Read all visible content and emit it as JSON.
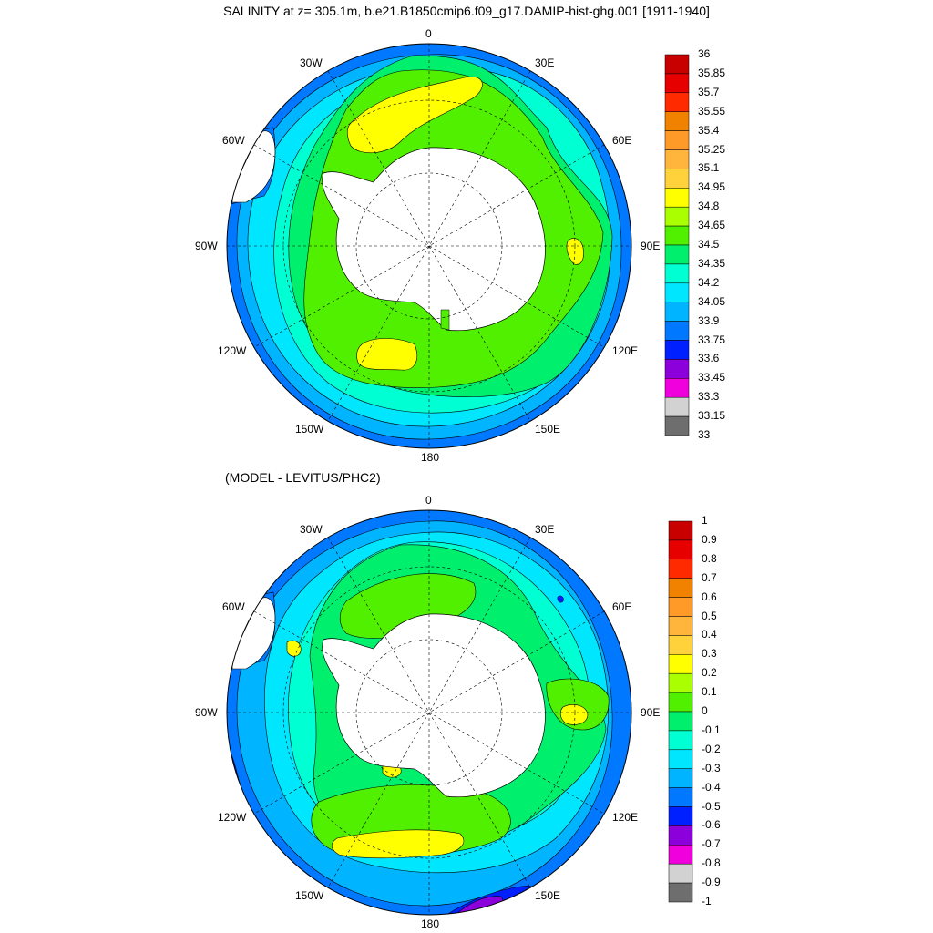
{
  "panel1": {
    "title": "SALINITY at z= 305.1m, b.e21.B1850cmip6.f09_g17.DAMIP-hist-ghg.001 [1911-1940]",
    "lon_labels": [
      "0",
      "30E",
      "60E",
      "90E",
      "120E",
      "150E",
      "180",
      "150W",
      "120W",
      "90W",
      "60W",
      "30W"
    ],
    "colorbar": {
      "labels": [
        "36",
        "35.85",
        "35.7",
        "35.55",
        "35.4",
        "35.25",
        "35.1",
        "34.95",
        "34.8",
        "34.65",
        "34.5",
        "34.35",
        "34.2",
        "34.05",
        "33.9",
        "33.75",
        "33.6",
        "33.45",
        "33.3",
        "33.15",
        "33"
      ],
      "colors_top_to_bottom": [
        "#c80000",
        "#e60000",
        "#ff2a00",
        "#f08200",
        "#ff9a28",
        "#ffb43c",
        "#ffd23c",
        "#ffff00",
        "#aaff00",
        "#50f000",
        "#00f06e",
        "#00ffd2",
        "#00e6ff",
        "#00b4ff",
        "#0078ff",
        "#0020ff",
        "#8c00dc",
        "#f000dc",
        "#d2d2d2",
        "#6e6e6e"
      ]
    }
  },
  "panel2": {
    "title": "(MODEL - LEVITUS/PHC2)",
    "lon_labels": [
      "0",
      "30E",
      "60E",
      "90E",
      "120E",
      "150E",
      "180",
      "150W",
      "120W",
      "90W",
      "60W",
      "30W"
    ],
    "colorbar": {
      "labels": [
        "1",
        "0.9",
        "0.8",
        "0.7",
        "0.6",
        "0.5",
        "0.4",
        "0.3",
        "0.2",
        "0.1",
        "0",
        "-0.1",
        "-0.2",
        "-0.3",
        "-0.4",
        "-0.5",
        "-0.6",
        "-0.7",
        "-0.8",
        "-0.9",
        "-1"
      ],
      "colors_top_to_bottom": [
        "#c80000",
        "#e60000",
        "#ff2a00",
        "#f08200",
        "#ff9a28",
        "#ffb43c",
        "#ffd23c",
        "#ffff00",
        "#aaff00",
        "#50f000",
        "#00f06e",
        "#00ffd2",
        "#00e6ff",
        "#00b4ff",
        "#0078ff",
        "#0020ff",
        "#8c00dc",
        "#f000dc",
        "#d2d2d2",
        "#6e6e6e"
      ]
    }
  }
}
